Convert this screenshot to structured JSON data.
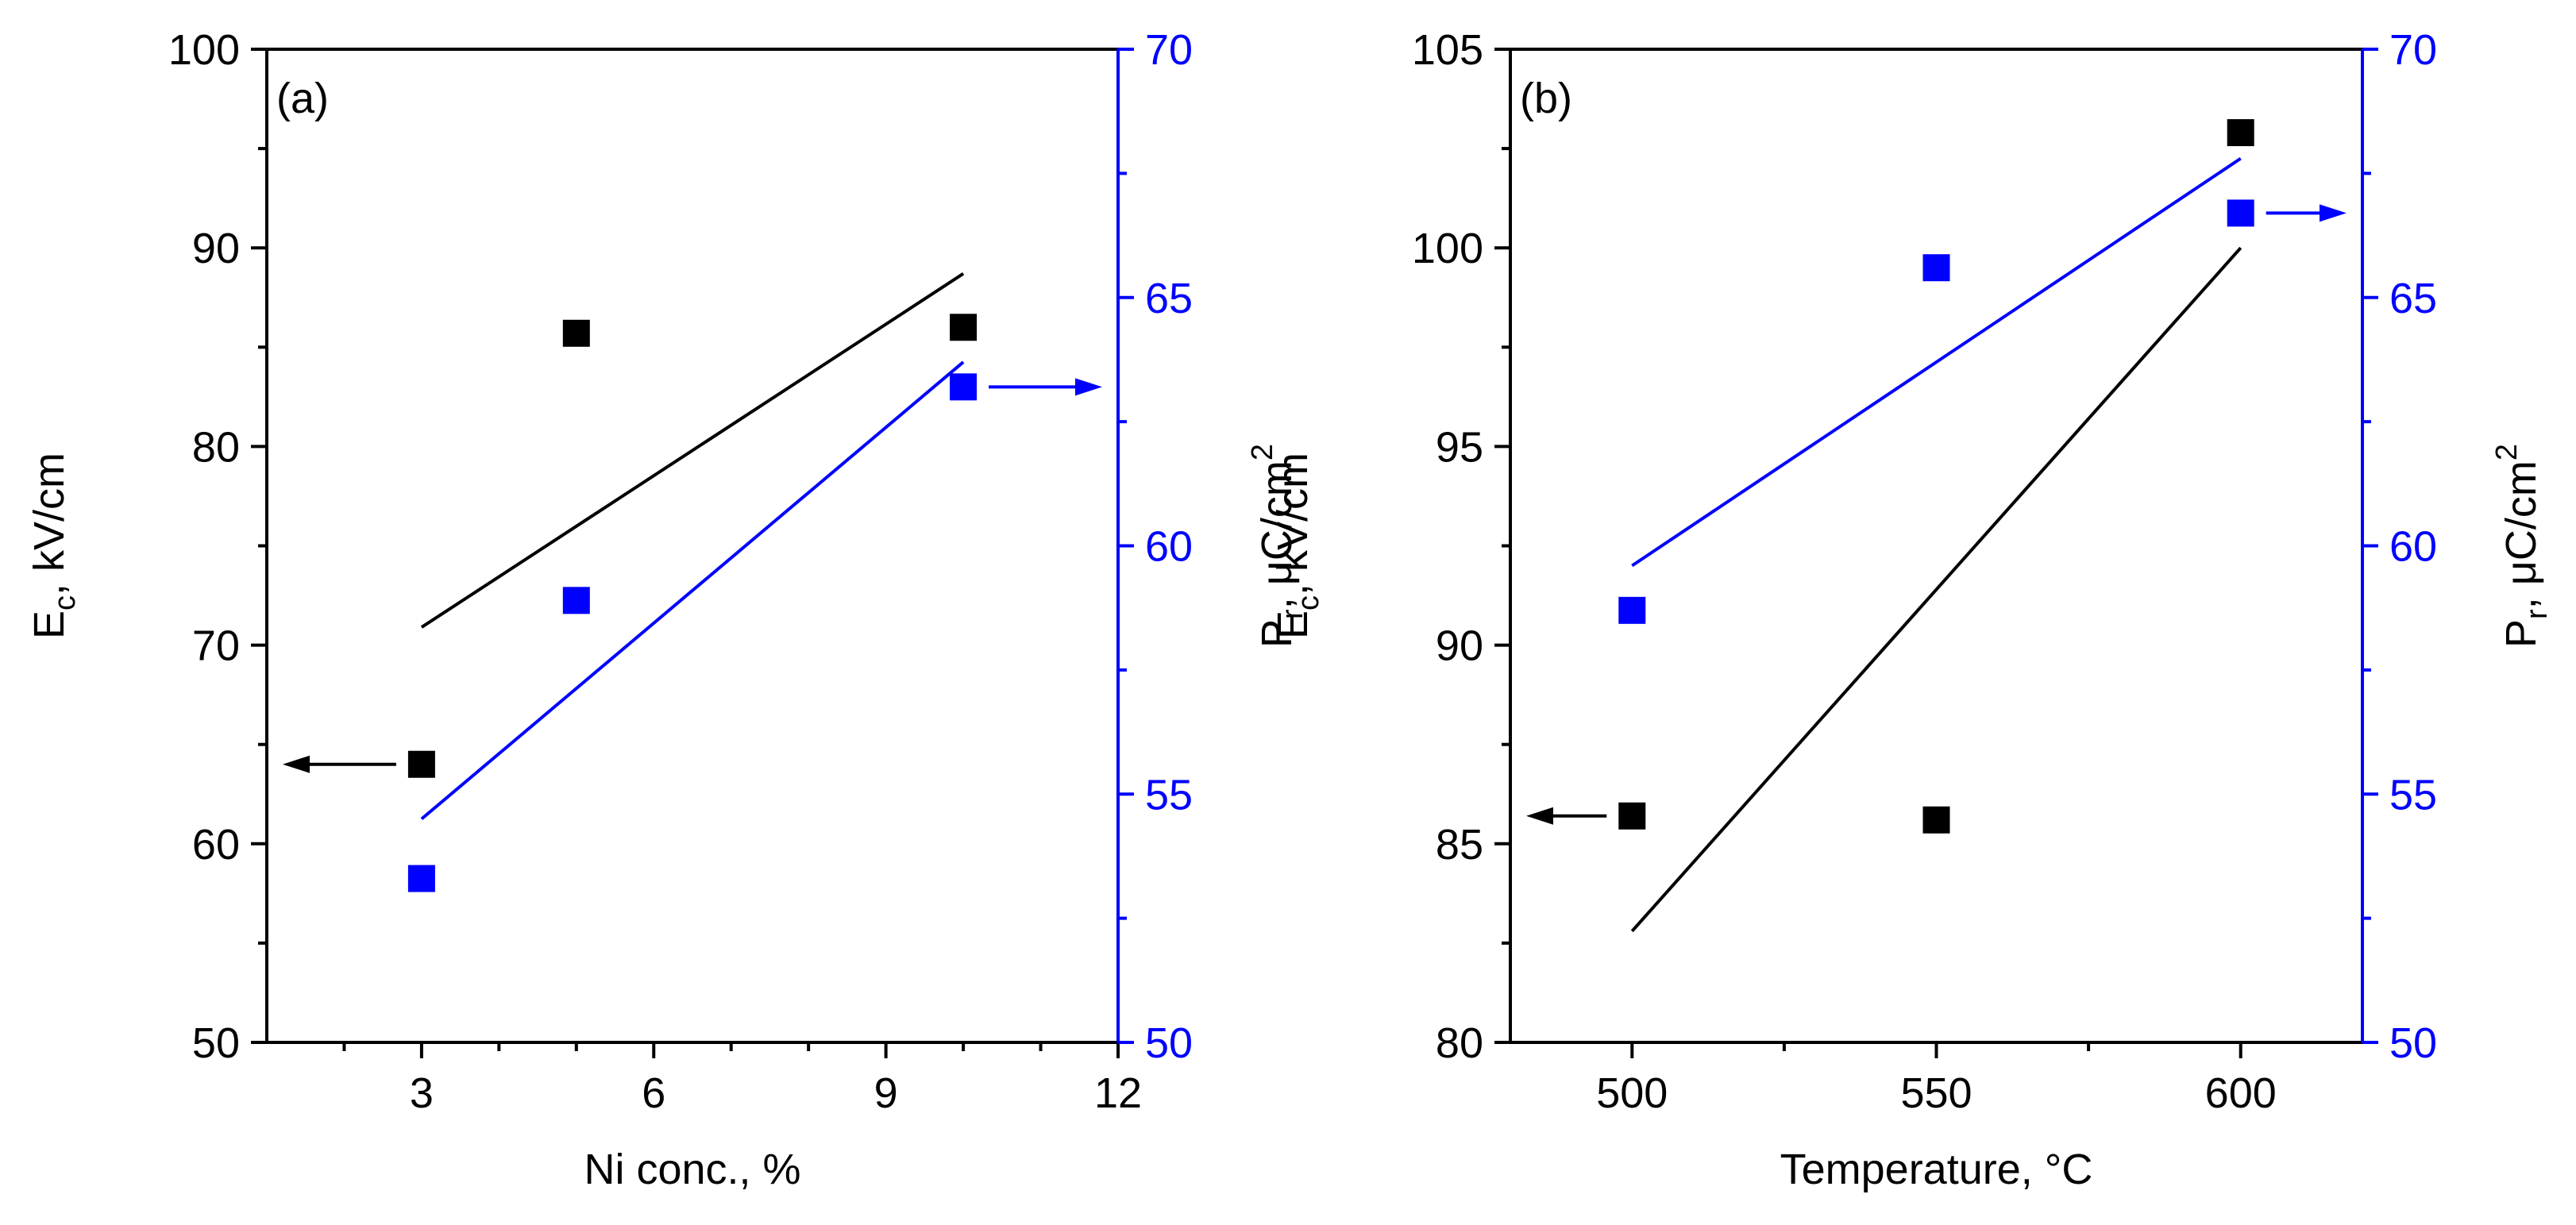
{
  "colors": {
    "left": "#000000",
    "right": "#0000ff"
  },
  "chart_data": [
    {
      "type": "scatter",
      "panel_label": "(a)",
      "xlabel": "Ni conc., %",
      "ylabel_left": {
        "main": "E",
        "sub": "c",
        "rest": ", kV/cm"
      },
      "ylabel_right": {
        "main": "P",
        "sub": "r",
        "mid": ", μC/cm",
        "sup": "2"
      },
      "xlim": [
        1,
        12
      ],
      "x_ticks": [
        3,
        6,
        9,
        12
      ],
      "x_tick_labels": [
        "3",
        "6",
        "9",
        "12"
      ],
      "x_minor_ticks": [
        2,
        4,
        5,
        7,
        8,
        10,
        11
      ],
      "ylim_left": [
        50,
        100
      ],
      "y_ticks_left": [
        50,
        60,
        70,
        80,
        90,
        100
      ],
      "y_tick_labels_left": [
        "50",
        "60",
        "70",
        "80",
        "90",
        "100"
      ],
      "ylim_right": [
        50,
        70
      ],
      "y_ticks_right": [
        50,
        55,
        60,
        65,
        70
      ],
      "y_tick_labels_right": [
        "50",
        "55",
        "60",
        "65",
        "70"
      ],
      "series": [
        {
          "name": "Ec",
          "axis": "left",
          "color": "#000000",
          "x": [
            3,
            5,
            10
          ],
          "y": [
            64,
            85.7,
            86
          ],
          "fit": {
            "x": [
              3,
              10
            ],
            "y": [
              70.9,
              88.7
            ]
          }
        },
        {
          "name": "Pr",
          "axis": "right",
          "color": "#0000ff",
          "x": [
            3,
            5,
            10
          ],
          "y": [
            53.3,
            58.9,
            63.2
          ],
          "fit": {
            "x": [
              3,
              10
            ],
            "y": [
              54.5,
              63.7
            ]
          }
        }
      ],
      "arrows": [
        {
          "series": "Ec",
          "direction": "left",
          "from_x": 3,
          "from_y": 64
        },
        {
          "series": "Pr",
          "direction": "right",
          "from_x": 10,
          "from_y": 63.2
        }
      ]
    },
    {
      "type": "scatter",
      "panel_label": "(b)",
      "xlabel": "Temperature, °C",
      "ylabel_left": {
        "main": "E",
        "sub": "c",
        "rest": ", kV/cm"
      },
      "ylabel_right": {
        "main": "P",
        "sub": "r",
        "mid": ", μC/cm",
        "sup": "2"
      },
      "xlim": [
        480,
        620
      ],
      "x_ticks": [
        500,
        550,
        600
      ],
      "x_tick_labels": [
        "500",
        "550",
        "600"
      ],
      "x_minor_ticks": [
        525,
        575
      ],
      "ylim_left": [
        80,
        105
      ],
      "y_ticks_left": [
        80,
        85,
        90,
        95,
        100,
        105
      ],
      "y_tick_labels_left": [
        "80",
        "85",
        "90",
        "95",
        "100",
        "105"
      ],
      "ylim_right": [
        50,
        70
      ],
      "y_ticks_right": [
        50,
        55,
        60,
        65,
        70
      ],
      "y_tick_labels_right": [
        "50",
        "55",
        "60",
        "65",
        "70"
      ],
      "series": [
        {
          "name": "Ec",
          "axis": "left",
          "color": "#000000",
          "x": [
            500,
            550,
            600
          ],
          "y": [
            85.7,
            85.6,
            102.9
          ],
          "fit": {
            "x": [
              500,
              600
            ],
            "y": [
              82.8,
              100
            ]
          }
        },
        {
          "name": "Pr",
          "axis": "right",
          "color": "#0000ff",
          "x": [
            500,
            550,
            600
          ],
          "y": [
            58.7,
            65.6,
            66.7
          ],
          "fit": {
            "x": [
              500,
              600
            ],
            "y": [
              59.6,
              67.8
            ]
          }
        }
      ],
      "arrows": [
        {
          "series": "Ec",
          "direction": "left",
          "from_x": 500,
          "from_y": 85.7
        },
        {
          "series": "Pr",
          "direction": "right",
          "from_x": 600,
          "from_y": 66.7
        }
      ]
    }
  ]
}
